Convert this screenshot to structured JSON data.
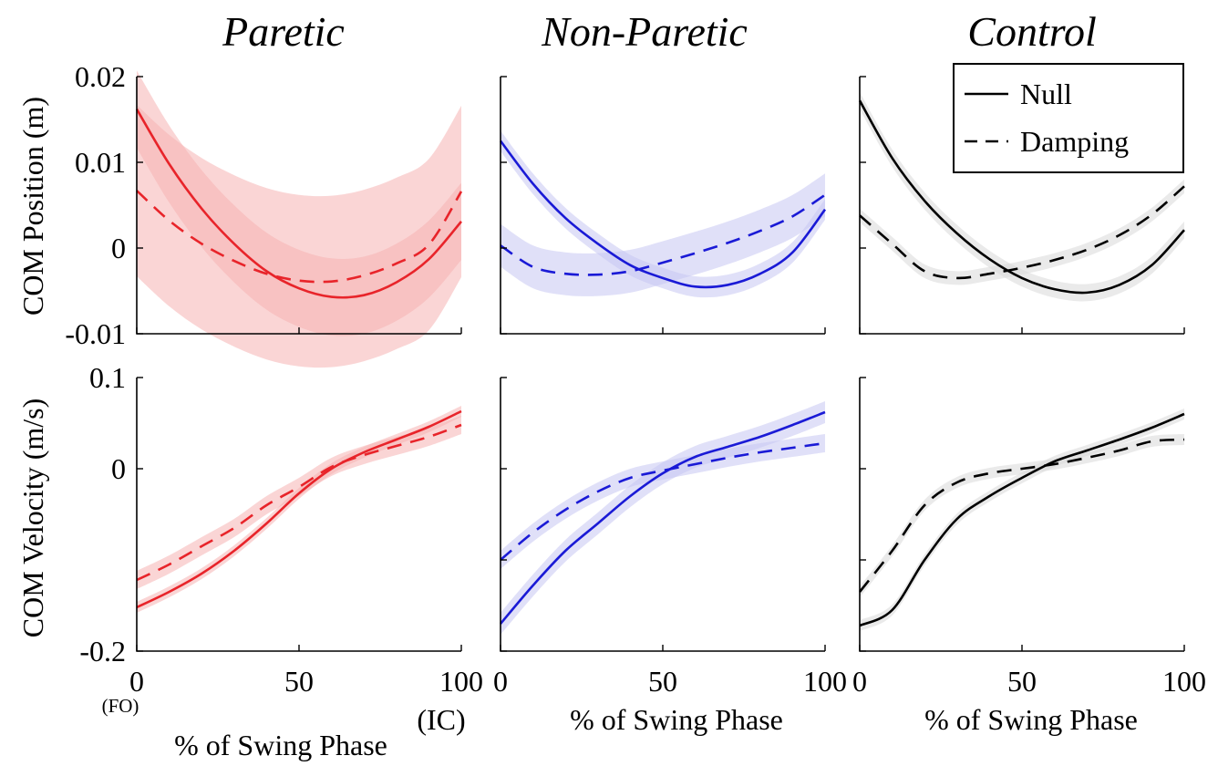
{
  "figure": {
    "legend": {
      "entries": [
        "Null",
        "Damping"
      ],
      "placement": "top-right of Control position panel"
    },
    "row_labels": [
      "COM Position (m)",
      "COM Velocity (m/s)"
    ],
    "xlabel": "% of Swing Phase",
    "x_endpoint_labels": {
      "start": "(FO)",
      "end": "(IC)"
    }
  },
  "chart_data": [
    {
      "type": "line",
      "title": "Paretic",
      "ylabel": "COM Position (m)",
      "xlabel": "",
      "xlim": [
        0,
        100
      ],
      "ylim": [
        -0.01,
        0.02
      ],
      "xticks": [
        0,
        50,
        100
      ],
      "yticks": [
        -0.01,
        0,
        0.01,
        0.02
      ],
      "ytick_labels": [
        "-0.01",
        "0",
        "0.01",
        "0.02"
      ],
      "show_ytick_labels": true,
      "show_xtick_labels": false,
      "color": "#e8242a",
      "band_color": "#f6b3b3",
      "x": [
        0,
        10,
        20,
        30,
        40,
        50,
        60,
        70,
        80,
        90,
        100
      ],
      "series": [
        {
          "name": "Null",
          "dash": "solid",
          "values": [
            0.0162,
            0.0098,
            0.0046,
            0.0005,
            -0.0027,
            -0.0047,
            -0.0057,
            -0.0055,
            -0.004,
            -0.0013,
            0.0031
          ],
          "band": 0.0045
        },
        {
          "name": "Damping",
          "dash": "dashed",
          "values": [
            0.0067,
            0.0032,
            0.0005,
            -0.0015,
            -0.003,
            -0.0038,
            -0.0039,
            -0.0032,
            -0.0018,
            0.0004,
            0.0066
          ],
          "band": 0.01
        }
      ]
    },
    {
      "type": "line",
      "title": "Non-Paretic",
      "ylabel": "",
      "xlabel": "",
      "xlim": [
        0,
        100
      ],
      "ylim": [
        -0.01,
        0.02
      ],
      "xticks": [
        0,
        50,
        100
      ],
      "yticks": [
        -0.01,
        0,
        0.01,
        0.02
      ],
      "show_ytick_labels": false,
      "show_xtick_labels": false,
      "color": "#1a1ad6",
      "band_color": "#c7c7f2",
      "x": [
        0,
        10,
        20,
        30,
        40,
        50,
        60,
        70,
        80,
        90,
        100
      ],
      "series": [
        {
          "name": "Null",
          "dash": "solid",
          "values": [
            0.0125,
            0.0075,
            0.0035,
            0.0005,
            -0.002,
            -0.0035,
            -0.0045,
            -0.0043,
            -0.003,
            -0.0005,
            0.0045
          ],
          "band": 0.0012
        },
        {
          "name": "Damping",
          "dash": "dashed",
          "values": [
            0.0003,
            -0.0022,
            -0.003,
            -0.0031,
            -0.0027,
            -0.0017,
            -0.0006,
            0.0006,
            0.002,
            0.0037,
            0.0062
          ],
          "band": 0.0025
        }
      ]
    },
    {
      "type": "line",
      "title": "Control",
      "ylabel": "",
      "xlabel": "",
      "xlim": [
        0,
        100
      ],
      "ylim": [
        -0.01,
        0.02
      ],
      "xticks": [
        0,
        50,
        100
      ],
      "yticks": [
        -0.01,
        0,
        0.01,
        0.02
      ],
      "show_ytick_labels": false,
      "show_xtick_labels": false,
      "color": "#000000",
      "band_color": "#d9d9d9",
      "x": [
        0,
        10,
        20,
        30,
        40,
        50,
        60,
        70,
        80,
        90,
        100
      ],
      "series": [
        {
          "name": "Null",
          "dash": "solid",
          "values": [
            0.0172,
            0.0105,
            0.0055,
            0.0017,
            -0.0013,
            -0.0035,
            -0.0048,
            -0.0052,
            -0.0043,
            -0.002,
            0.0021
          ],
          "band": 0.001
        },
        {
          "name": "Damping",
          "dash": "dashed",
          "values": [
            0.0038,
            0.0005,
            -0.0027,
            -0.0035,
            -0.003,
            -0.0023,
            -0.0014,
            -0.0002,
            0.0015,
            0.0039,
            0.0072
          ],
          "band": 0.0008
        }
      ]
    },
    {
      "type": "line",
      "title": "",
      "ylabel": "COM Velocity (m/s)",
      "xlabel": "% of Swing Phase",
      "xlim": [
        0,
        100
      ],
      "ylim": [
        -0.2,
        0.1
      ],
      "xticks": [
        0,
        50,
        100
      ],
      "yticks": [
        -0.2,
        0,
        0.1
      ],
      "ytick_labels": [
        "-0.2",
        "0",
        "0.1"
      ],
      "xtick_labels": [
        "0",
        "50",
        "100"
      ],
      "show_ytick_labels": true,
      "show_xtick_labels": true,
      "color": "#e8242a",
      "band_color": "#f6b3b3",
      "x": [
        0,
        10,
        20,
        30,
        40,
        50,
        60,
        70,
        80,
        90,
        100
      ],
      "series": [
        {
          "name": "Null",
          "dash": "solid",
          "values": [
            -0.152,
            -0.135,
            -0.115,
            -0.09,
            -0.06,
            -0.027,
            0.0,
            0.018,
            0.032,
            0.046,
            0.063
          ],
          "band": 0.006
        },
        {
          "name": "Damping",
          "dash": "dashed",
          "values": [
            -0.122,
            -0.105,
            -0.085,
            -0.065,
            -0.04,
            -0.02,
            0.002,
            0.015,
            0.025,
            0.035,
            0.048
          ],
          "band": 0.01
        }
      ]
    },
    {
      "type": "line",
      "title": "",
      "ylabel": "",
      "xlabel": "% of Swing Phase",
      "xlim": [
        0,
        100
      ],
      "ylim": [
        -0.2,
        0.1
      ],
      "xticks": [
        0,
        50,
        100
      ],
      "yticks": [
        -0.2,
        -0.1,
        0,
        0.1
      ],
      "xtick_labels": [
        "0",
        "50",
        "100"
      ],
      "show_ytick_labels": false,
      "show_xtick_labels": true,
      "color": "#1a1ad6",
      "band_color": "#c7c7f2",
      "x": [
        0,
        10,
        20,
        30,
        40,
        50,
        60,
        70,
        80,
        90,
        100
      ],
      "series": [
        {
          "name": "Null",
          "dash": "solid",
          "values": [
            -0.17,
            -0.128,
            -0.09,
            -0.06,
            -0.03,
            -0.005,
            0.013,
            0.024,
            0.035,
            0.048,
            0.062
          ],
          "band": 0.012
        },
        {
          "name": "Damping",
          "dash": "dashed",
          "values": [
            -0.1,
            -0.07,
            -0.045,
            -0.025,
            -0.01,
            -0.002,
            0.005,
            0.012,
            0.018,
            0.023,
            0.028
          ],
          "band": 0.01
        }
      ]
    },
    {
      "type": "line",
      "title": "",
      "ylabel": "",
      "xlabel": "% of Swing Phase",
      "xlim": [
        0,
        100
      ],
      "ylim": [
        -0.2,
        0.1
      ],
      "xticks": [
        0,
        50,
        100
      ],
      "yticks": [
        -0.2,
        -0.1,
        0,
        0.1
      ],
      "xtick_labels": [
        "0",
        "50",
        "100"
      ],
      "show_ytick_labels": false,
      "show_xtick_labels": true,
      "color": "#000000",
      "band_color": "#d9d9d9",
      "x": [
        0,
        10,
        20,
        30,
        40,
        50,
        60,
        70,
        80,
        90,
        100
      ],
      "series": [
        {
          "name": "Null",
          "dash": "solid",
          "values": [
            -0.172,
            -0.155,
            -0.1,
            -0.055,
            -0.03,
            -0.01,
            0.008,
            0.02,
            0.032,
            0.045,
            0.06
          ],
          "band": 0.006
        },
        {
          "name": "Damping",
          "dash": "dashed",
          "values": [
            -0.135,
            -0.09,
            -0.04,
            -0.015,
            -0.005,
            0.0,
            0.005,
            0.012,
            0.02,
            0.03,
            0.032
          ],
          "band": 0.006
        }
      ]
    }
  ]
}
